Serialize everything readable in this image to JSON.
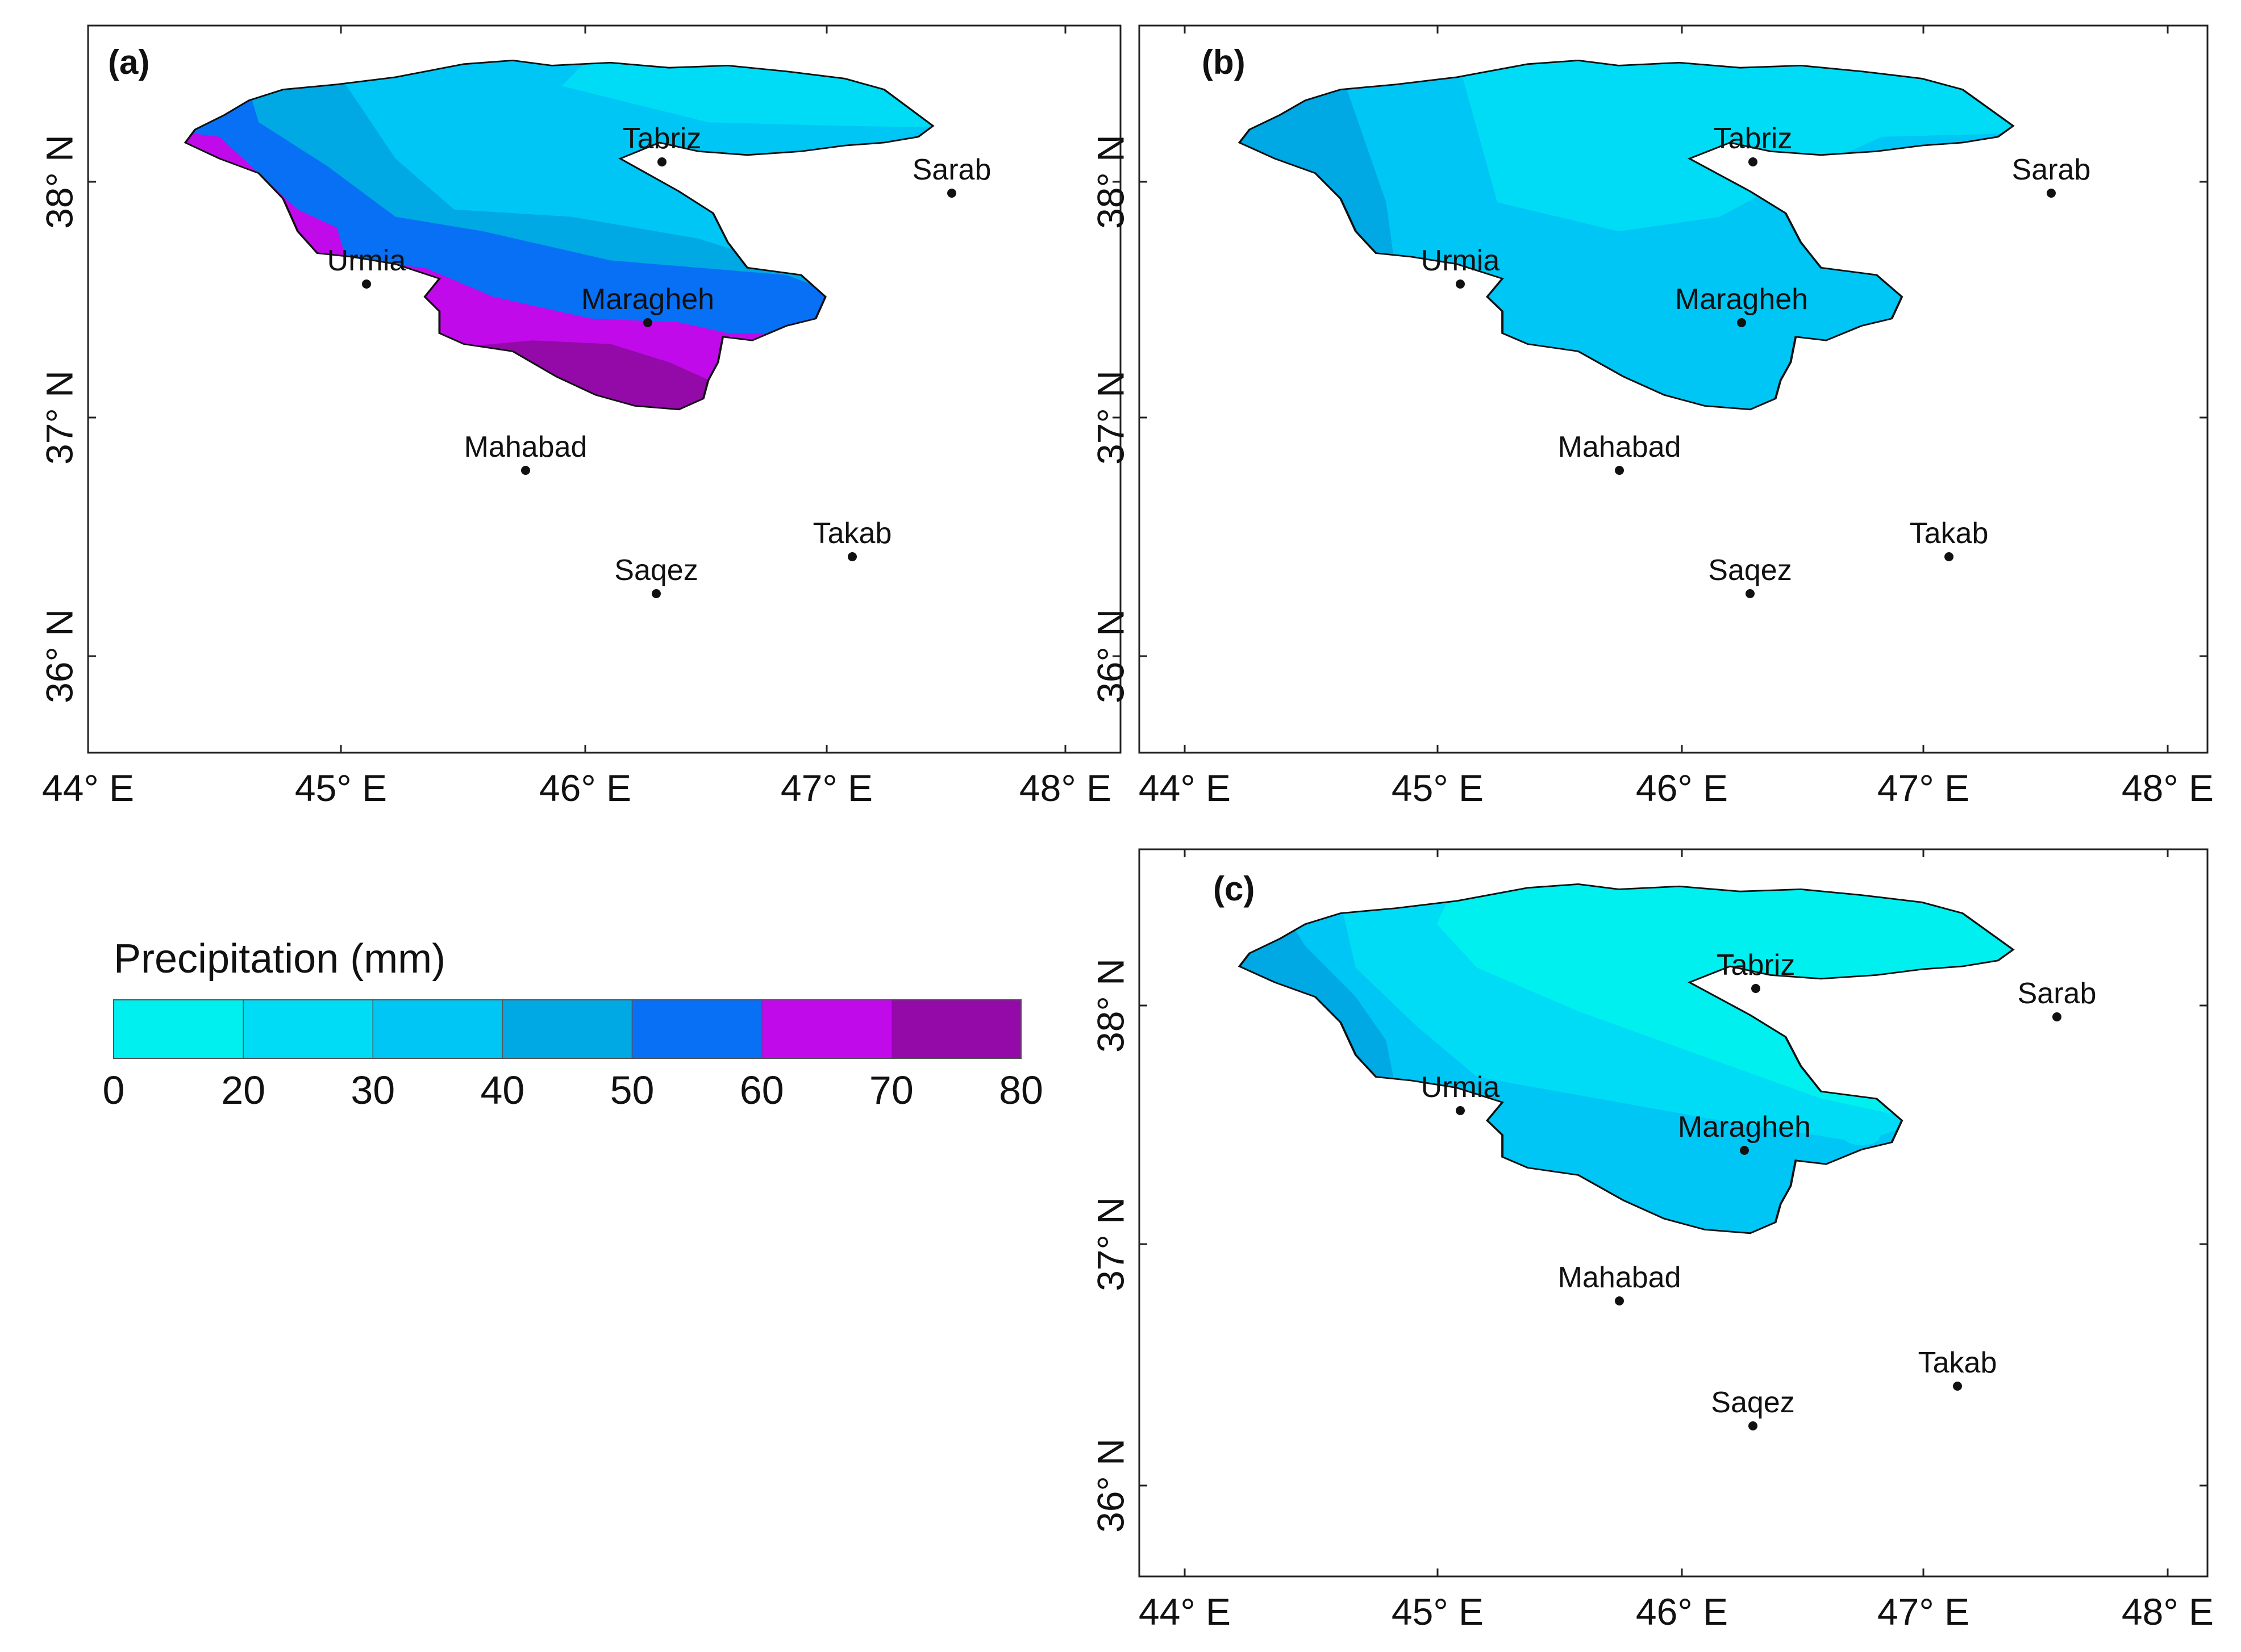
{
  "palette": {
    "c0_20": "#00f0f0",
    "c20_30": "#00dcf5",
    "c30_40": "#00c6f5",
    "c40_50": "#00a8e4",
    "c50_60": "#0870f5",
    "c60_70": "#c00aea",
    "c70_80": "#930aa8",
    "outline": "#111111",
    "frame": "#222222"
  },
  "panels": [
    {
      "label": "(a)",
      "x_ticks": [
        "44° E",
        "45° E",
        "46° E",
        "47° E",
        "48° E"
      ],
      "y_ticks": [
        "38° N",
        "37° N",
        "36° N"
      ],
      "cities": [
        "Tabriz",
        "Sarab",
        "Urmia",
        "Maragheh",
        "Mahabad",
        "Takab",
        "Saqez"
      ]
    },
    {
      "label": "(b)",
      "x_ticks": [
        "44° E",
        "45° E",
        "46° E",
        "47° E",
        "48° E"
      ],
      "y_ticks": [
        "38° N",
        "37° N",
        "36° N"
      ],
      "cities": [
        "Tabriz",
        "Sarab",
        "Urmia",
        "Maragheh",
        "Mahabad",
        "Takab",
        "Saqez"
      ]
    },
    {
      "label": "(c)",
      "x_ticks": [
        "44° E",
        "45° E",
        "46° E",
        "47° E",
        "48° E"
      ],
      "y_ticks": [
        "38° N",
        "37° N",
        "36° N"
      ],
      "cities": [
        "Tabriz",
        "Sarab",
        "Urmia",
        "Maragheh",
        "Mahabad",
        "Takab",
        "Saqez"
      ]
    }
  ],
  "legend": {
    "title": "Precipitation (mm)",
    "ticks": [
      "0",
      "20",
      "30",
      "40",
      "50",
      "60",
      "70",
      "80"
    ],
    "colors": [
      "#00f0f0",
      "#00dcf5",
      "#00c6f5",
      "#00a8e4",
      "#0870f5",
      "#c00aea",
      "#930aa8"
    ]
  }
}
